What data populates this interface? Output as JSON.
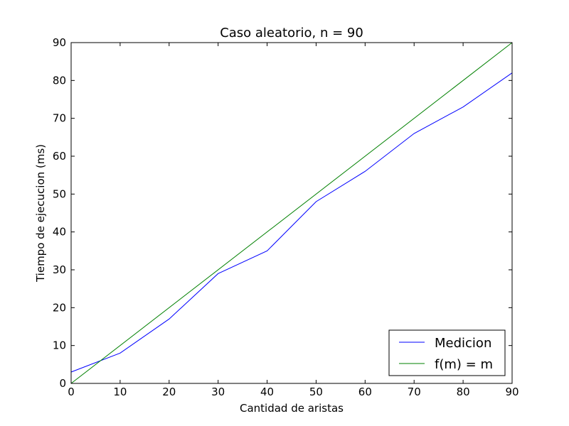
{
  "chart_data": {
    "type": "line",
    "title": "Caso aleatorio, n = 90",
    "xlabel": "Cantidad de aristas",
    "ylabel": "Tiempo de ejecucion (ms)",
    "xlim": [
      0,
      90
    ],
    "ylim": [
      0,
      90
    ],
    "xticks": [
      0,
      10,
      20,
      30,
      40,
      50,
      60,
      70,
      80,
      90
    ],
    "yticks": [
      0,
      10,
      20,
      30,
      40,
      50,
      60,
      70,
      80,
      90
    ],
    "grid": false,
    "legend_position": "bottom-right",
    "series": [
      {
        "name": "Medicion",
        "color": "#0000ff",
        "x": [
          0,
          10,
          20,
          30,
          40,
          50,
          60,
          70,
          80,
          90
        ],
        "y": [
          3,
          8,
          17,
          29,
          35,
          48,
          56,
          66,
          73,
          82
        ]
      },
      {
        "name": "f(m) = m",
        "color": "#008000",
        "x": [
          0,
          90
        ],
        "y": [
          0,
          90
        ]
      }
    ]
  }
}
